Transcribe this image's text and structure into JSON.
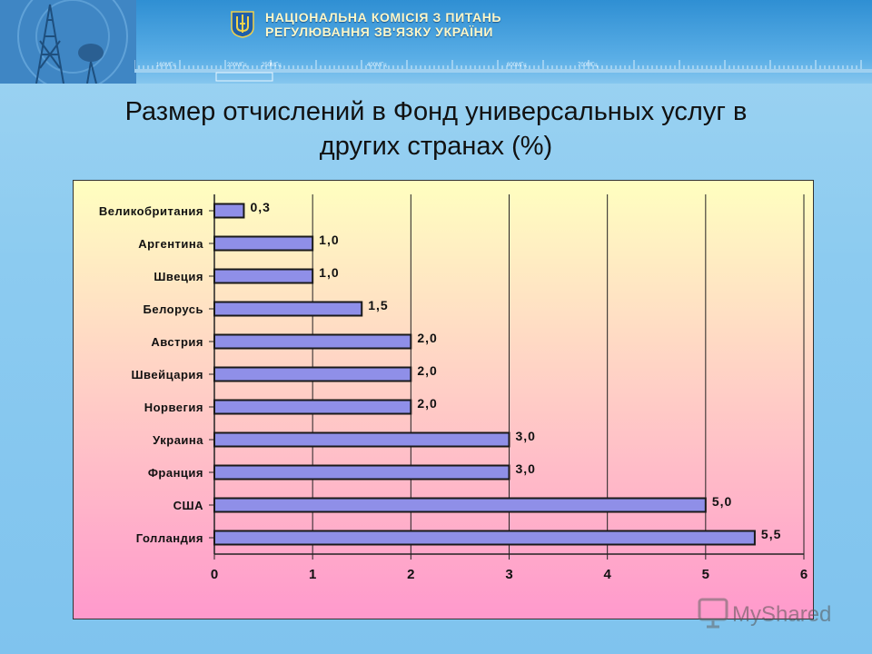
{
  "header": {
    "org_line_1": "НАЦІОНАЛЬНА КОМІСІЯ З ПИТАНЬ",
    "org_line_2": "РЕГУЛЮВАННЯ ЗВ'ЯЗКУ УКРАЇНИ",
    "freq_labels": [
      "160МГц",
      "200МГц",
      "250МГц",
      "400МГц",
      "600МГц",
      "700МГц"
    ]
  },
  "title_lines": [
    "Размер отчислений в Фонд универсальных услуг в",
    "других странах (%)"
  ],
  "watermark": {
    "text": "MyShared"
  },
  "colors": {
    "bar_fill": "#8f8fe8",
    "bar_stroke": "#1a1a1a",
    "plot_top": "#ffffc0",
    "plot_bottom": "#ff99cc"
  },
  "chart_data": {
    "type": "bar",
    "orientation": "horizontal",
    "categories": [
      "Великобритания",
      "Аргентина",
      "Швеция",
      "Белорусь",
      "Австрия",
      "Швейцария",
      "Норвегия",
      "Украина",
      "Франция",
      "США",
      "Голландия"
    ],
    "values": [
      0.3,
      1.0,
      1.0,
      1.5,
      2.0,
      2.0,
      2.0,
      3.0,
      3.0,
      5.0,
      5.5
    ],
    "value_labels": [
      "0,3",
      "1,0",
      "1,0",
      "1,5",
      "2,0",
      "2,0",
      "2,0",
      "3,0",
      "3,0",
      "5,0",
      "5,5"
    ],
    "xlim": [
      0,
      6
    ],
    "xticks": [
      "0",
      "1",
      "2",
      "3",
      "4",
      "5",
      "6"
    ],
    "grid": true,
    "legend": "none"
  }
}
